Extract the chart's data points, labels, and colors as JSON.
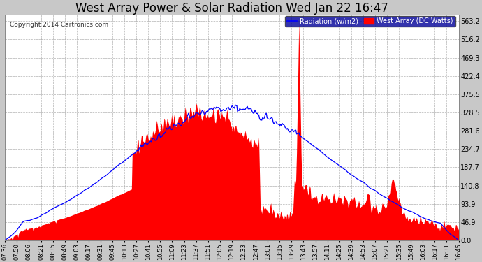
{
  "title": "West Array Power & Solar Radiation Wed Jan 22 16:47",
  "copyright": "Copyright 2014 Cartronics.com",
  "legend_radiation": "Radiation (w/m2)",
  "legend_west_array": "West Array (DC Watts)",
  "yticks": [
    0.0,
    46.9,
    93.9,
    140.8,
    187.7,
    234.7,
    281.6,
    328.5,
    375.5,
    422.4,
    469.3,
    516.2,
    563.2
  ],
  "ymax": 580,
  "background_color": "#c8c8c8",
  "plot_bg_color": "#ffffff",
  "grid_color": "#aaaaaa",
  "radiation_color": "#0000ff",
  "west_array_color": "#ff0000",
  "title_color": "#000000",
  "title_fontsize": 12,
  "xtick_labels": [
    "07:36",
    "07:50",
    "08:06",
    "08:21",
    "08:35",
    "08:49",
    "09:03",
    "09:17",
    "09:31",
    "09:45",
    "10:13",
    "10:27",
    "10:41",
    "10:55",
    "11:09",
    "11:23",
    "11:37",
    "11:51",
    "12:05",
    "12:19",
    "12:33",
    "12:47",
    "13:01",
    "13:15",
    "13:29",
    "13:43",
    "13:57",
    "14:11",
    "14:25",
    "14:39",
    "14:53",
    "15:07",
    "15:21",
    "15:35",
    "15:49",
    "16:03",
    "16:17",
    "16:31",
    "16:45"
  ],
  "n_points": 600
}
